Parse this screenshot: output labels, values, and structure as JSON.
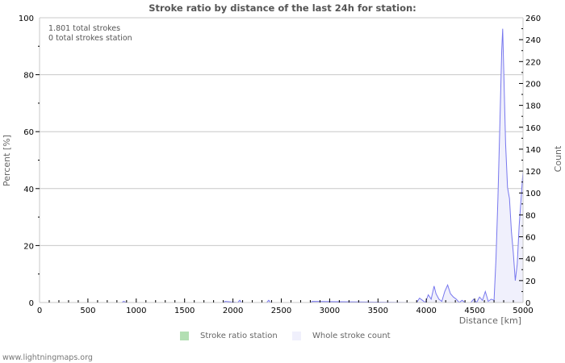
{
  "chart_data": {
    "type": "area",
    "title": "Stroke ratio by distance of the last 24h for station:",
    "xlabel": "Distance   [km]",
    "ylabel_left": "Percent   [%]",
    "ylabel_right": "Count",
    "xlim": [
      0,
      5000
    ],
    "ylim_left": [
      0,
      100
    ],
    "ylim_right": [
      0,
      260
    ],
    "x_ticks": [
      0,
      500,
      1000,
      1500,
      2000,
      2500,
      3000,
      3500,
      4000,
      4500,
      5000
    ],
    "y_left_ticks": [
      0,
      20,
      40,
      60,
      80,
      100
    ],
    "y_right_ticks": [
      0,
      20,
      40,
      60,
      80,
      100,
      120,
      140,
      160,
      180,
      200,
      220,
      240,
      260
    ],
    "grid": true,
    "legend_position": "bottom",
    "annotations": [
      "1.801 total strokes",
      "0 total strokes station"
    ],
    "series": [
      {
        "name": "Stroke ratio station",
        "axis": "left",
        "color": "#b3dfb3",
        "x": [],
        "values": []
      },
      {
        "name": "Whole stroke count",
        "axis": "right",
        "color": "#7777ee",
        "fill": "#f0f0fc",
        "x": [
          0,
          850,
          870,
          900,
          1900,
          1920,
          2050,
          2070,
          2090,
          2350,
          2370,
          2390,
          2800,
          2820,
          3850,
          3900,
          3930,
          3960,
          3990,
          4020,
          4050,
          4080,
          4100,
          4130,
          4160,
          4190,
          4220,
          4250,
          4280,
          4310,
          4340,
          4370,
          4400,
          4430,
          4460,
          4490,
          4520,
          4550,
          4580,
          4610,
          4640,
          4670,
          4700,
          4720,
          4740,
          4760,
          4780,
          4790,
          4800,
          4820,
          4840,
          4860,
          4880,
          4900,
          4920,
          4940,
          4960,
          4980,
          5000
        ],
        "values": [
          0,
          0,
          1,
          0,
          0,
          1,
          0,
          2,
          0,
          0,
          2,
          0,
          0,
          1,
          0,
          0,
          4,
          2,
          0,
          7,
          3,
          15,
          8,
          3,
          1,
          10,
          16,
          8,
          5,
          3,
          0,
          2,
          0,
          0,
          0,
          3,
          0,
          5,
          2,
          10,
          1,
          3,
          2,
          40,
          95,
          160,
          230,
          250,
          215,
          145,
          105,
          95,
          65,
          45,
          20,
          35,
          70,
          95,
          120
        ]
      }
    ]
  },
  "header": {
    "title": "Stroke ratio by distance of the last 24h for station:"
  },
  "info": {
    "line1": "1.801 total strokes",
    "line2": "0 total strokes station"
  },
  "axes": {
    "x_label": "Distance   [km]",
    "y_left_label": "Percent   [%]",
    "y_right_label": "Count"
  },
  "legend": {
    "item1": {
      "label": "Stroke ratio station",
      "color": "#b3dfb3"
    },
    "item2": {
      "label": "Whole stroke count",
      "color": "#f0f0fc"
    }
  },
  "footer": {
    "text": "www.lightningmaps.org"
  }
}
